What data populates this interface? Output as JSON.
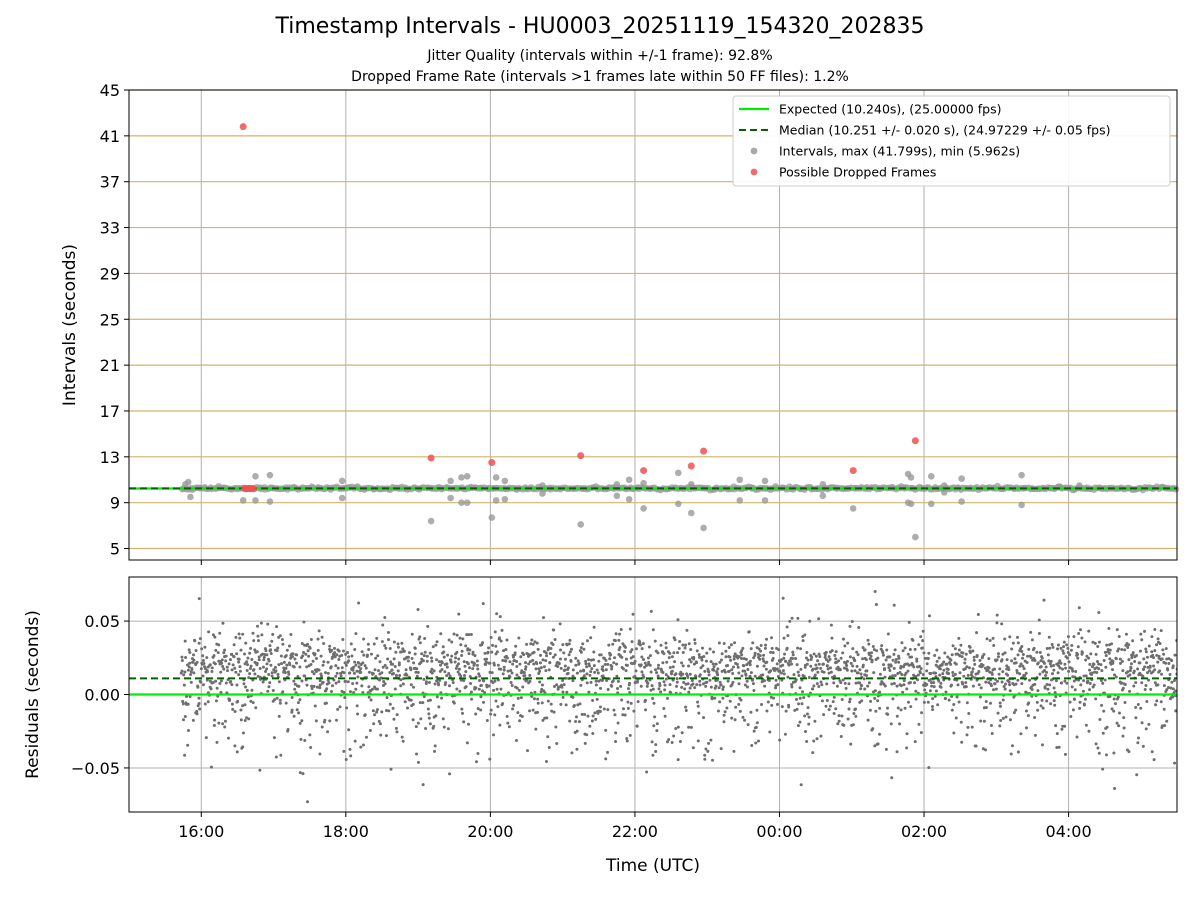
{
  "chart_data": [
    {
      "type": "scatter",
      "panel": "intervals",
      "title": "Timestamp Intervals - HU0003_20251119_154320_202835",
      "subtitle_lines": [
        "Jitter Quality (intervals within +/-1 frame): 92.8%",
        "Dropped Frame Rate (intervals >1 frames late within 50 FF files): 1.2%"
      ],
      "ylabel": "Intervals (seconds)",
      "xlim_hours": [
        15.0,
        29.5
      ],
      "ylim": [
        4,
        45
      ],
      "yticks": [
        5,
        9,
        13,
        17,
        21,
        25,
        29,
        33,
        37,
        41,
        45
      ],
      "grid": true,
      "legend_position": "upper right",
      "legend": [
        {
          "label": "Expected (10.240s), (25.00000 fps)",
          "kind": "line",
          "color": "#00ee00"
        },
        {
          "label": "Median (10.251 +/- 0.020 s), (24.97229 +/- 0.05 fps)",
          "kind": "dashed",
          "color": "#006400"
        },
        {
          "label": "Intervals, max (41.799s), min (5.962s)",
          "kind": "marker",
          "color": "#999999"
        },
        {
          "label": "Possible Dropped Frames",
          "kind": "marker",
          "color": "#f05050"
        }
      ],
      "expected": 10.24,
      "median": 10.251,
      "time_range_hours": [
        15.72,
        29.5
      ],
      "outliers": [
        {
          "x": 15.78,
          "y": 10.6
        },
        {
          "x": 15.82,
          "y": 10.8
        },
        {
          "x": 15.85,
          "y": 9.5
        },
        {
          "x": 16.58,
          "y": 9.2
        },
        {
          "x": 16.75,
          "y": 11.3
        },
        {
          "x": 16.75,
          "y": 9.2
        },
        {
          "x": 16.95,
          "y": 11.4
        },
        {
          "x": 16.95,
          "y": 9.1
        },
        {
          "x": 17.95,
          "y": 10.9
        },
        {
          "x": 17.95,
          "y": 9.4
        },
        {
          "x": 19.18,
          "y": 7.4
        },
        {
          "x": 19.45,
          "y": 10.9
        },
        {
          "x": 19.45,
          "y": 9.4
        },
        {
          "x": 19.6,
          "y": 11.2
        },
        {
          "x": 19.6,
          "y": 9.0
        },
        {
          "x": 19.68,
          "y": 11.3
        },
        {
          "x": 19.68,
          "y": 9.0
        },
        {
          "x": 20.02,
          "y": 7.7
        },
        {
          "x": 20.08,
          "y": 11.2
        },
        {
          "x": 20.08,
          "y": 9.2
        },
        {
          "x": 20.2,
          "y": 10.9
        },
        {
          "x": 20.2,
          "y": 9.3
        },
        {
          "x": 20.72,
          "y": 10.5
        },
        {
          "x": 20.72,
          "y": 9.8
        },
        {
          "x": 21.25,
          "y": 7.1
        },
        {
          "x": 21.75,
          "y": 10.6
        },
        {
          "x": 21.75,
          "y": 9.6
        },
        {
          "x": 21.92,
          "y": 11.0
        },
        {
          "x": 21.92,
          "y": 9.3
        },
        {
          "x": 22.12,
          "y": 10.7
        },
        {
          "x": 22.12,
          "y": 8.5
        },
        {
          "x": 22.6,
          "y": 11.6
        },
        {
          "x": 22.6,
          "y": 8.9
        },
        {
          "x": 22.78,
          "y": 10.6
        },
        {
          "x": 22.78,
          "y": 8.1
        },
        {
          "x": 22.95,
          "y": 6.8
        },
        {
          "x": 23.45,
          "y": 11.0
        },
        {
          "x": 23.45,
          "y": 9.2
        },
        {
          "x": 23.8,
          "y": 10.9
        },
        {
          "x": 23.8,
          "y": 9.2
        },
        {
          "x": 24.6,
          "y": 10.6
        },
        {
          "x": 24.6,
          "y": 9.6
        },
        {
          "x": 25.02,
          "y": 8.5
        },
        {
          "x": 25.78,
          "y": 11.5
        },
        {
          "x": 25.78,
          "y": 9.0
        },
        {
          "x": 25.82,
          "y": 11.2
        },
        {
          "x": 25.82,
          "y": 8.9
        },
        {
          "x": 25.88,
          "y": 6.0
        },
        {
          "x": 26.1,
          "y": 11.3
        },
        {
          "x": 26.1,
          "y": 8.9
        },
        {
          "x": 26.28,
          "y": 10.5
        },
        {
          "x": 26.28,
          "y": 9.9
        },
        {
          "x": 26.52,
          "y": 11.1
        },
        {
          "x": 26.52,
          "y": 9.1
        },
        {
          "x": 27.35,
          "y": 11.4
        },
        {
          "x": 27.35,
          "y": 8.8
        },
        {
          "x": 27.88,
          "y": 10.4
        },
        {
          "x": 28.15,
          "y": 10.5
        }
      ],
      "dropped_frames": [
        {
          "x": 16.58,
          "y": 41.8
        },
        {
          "x": 16.6,
          "y": 10.24
        },
        {
          "x": 16.63,
          "y": 10.24
        },
        {
          "x": 16.66,
          "y": 10.24
        },
        {
          "x": 16.69,
          "y": 10.24
        },
        {
          "x": 16.72,
          "y": 10.24
        },
        {
          "x": 19.18,
          "y": 12.9
        },
        {
          "x": 20.02,
          "y": 12.5
        },
        {
          "x": 21.25,
          "y": 13.1
        },
        {
          "x": 22.12,
          "y": 11.8
        },
        {
          "x": 22.78,
          "y": 12.2
        },
        {
          "x": 22.95,
          "y": 13.5
        },
        {
          "x": 25.02,
          "y": 11.8
        },
        {
          "x": 25.88,
          "y": 14.4
        }
      ]
    },
    {
      "type": "scatter",
      "panel": "residuals",
      "xlabel": "Time (UTC)",
      "ylabel": "Residuals (seconds)",
      "xlim_hours": [
        15.0,
        29.5
      ],
      "ylim": [
        -0.08,
        0.08
      ],
      "yticks": [
        -0.05,
        0.0,
        0.05
      ],
      "ytick_labels": [
        "−0.05",
        "0.00",
        "0.05"
      ],
      "xticks_hours": [
        16,
        18,
        20,
        22,
        24,
        26,
        28
      ],
      "xtick_labels": [
        "16:00",
        "18:00",
        "20:00",
        "22:00",
        "00:00",
        "02:00",
        "04:00"
      ],
      "grid": true,
      "expected_residual": 0.0,
      "median_residual": 0.011,
      "residual_distribution": {
        "spread": 0.022,
        "range": [
          -0.075,
          0.073
        ],
        "point_count": 2900
      }
    }
  ],
  "colors": {
    "expected": "#00ee00",
    "median": "#006400",
    "interval_points": "#999999",
    "dropped_points": "#f05050",
    "residual_points": "#6e6e6e",
    "hgrid_top": "#d2b46e",
    "grid": "#b0b0b0"
  }
}
